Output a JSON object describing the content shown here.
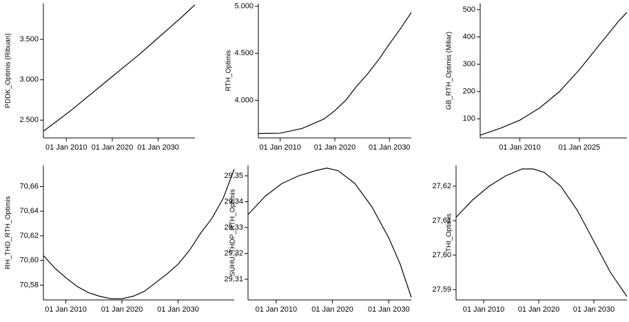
{
  "chart_data": [
    {
      "type": "line",
      "y_label": "PDDK_Optimis (Ribuan)",
      "color": "#000000",
      "x": [
        2005,
        2008,
        2011,
        2014,
        2017,
        2020,
        2023,
        2026,
        2029,
        2032,
        2035,
        2038
      ],
      "values": [
        2363,
        2490,
        2620,
        2760,
        2900,
        3040,
        3180,
        3320,
        3470,
        3620,
        3770,
        3930
      ],
      "xlim": [
        2005,
        2038
      ],
      "xticks": [
        {
          "value": 2010,
          "label": "01 Jan 2010"
        },
        {
          "value": 2020,
          "label": "01 Jan 2020"
        },
        {
          "value": 2030,
          "label": "01 Jan 2030"
        }
      ],
      "ylim": [
        2280,
        3945
      ],
      "yticks": [
        {
          "value": 2500,
          "label": "2.500"
        },
        {
          "value": 3000,
          "label": "3.000"
        },
        {
          "value": 3500,
          "label": "3.500"
        }
      ]
    },
    {
      "type": "line",
      "y_label": "RTH_Optimis",
      "color": "#000000",
      "x": [
        2006,
        2010,
        2014,
        2018,
        2020,
        2022,
        2024,
        2026,
        2028,
        2030,
        2032,
        2034
      ],
      "values": [
        3647,
        3650,
        3700,
        3800,
        3890,
        4000,
        4150,
        4280,
        4430,
        4600,
        4760,
        4934
      ],
      "xlim": [
        2006,
        2034
      ],
      "xticks": [
        {
          "value": 2010,
          "label": "01 Jan 2010"
        },
        {
          "value": 2020,
          "label": "01 Jan 2020"
        },
        {
          "value": 2030,
          "label": "01 Jan 2030"
        }
      ],
      "ylim": [
        3600,
        5030
      ],
      "yticks": [
        {
          "value": 4000,
          "label": "4.000"
        },
        {
          "value": 4500,
          "label": "4.500"
        },
        {
          "value": 5000,
          "label": "5.000"
        }
      ]
    },
    {
      "type": "line",
      "y_label": "GB_RTH_Optimis (Miliar)",
      "color": "#000000",
      "x": [
        2000,
        2005,
        2010,
        2015,
        2020,
        2025,
        2030,
        2035,
        2037
      ],
      "values": [
        40,
        65,
        95,
        140,
        200,
        280,
        370,
        460,
        490
      ],
      "xlim": [
        2000,
        2037
      ],
      "xticks": [
        {
          "value": 2010,
          "label": "01 Jan 2010"
        },
        {
          "value": 2025,
          "label": "01 Jan 2025"
        }
      ],
      "ylim": [
        30,
        523
      ],
      "yticks": [
        100,
        200,
        300,
        400,
        500
      ]
    },
    {
      "type": "line",
      "y_label": "RH_THD_RTH_Optimis",
      "color": "#000000",
      "x": [
        2006,
        2008,
        2010,
        2012,
        2014,
        2016,
        2018,
        2020,
        2022,
        2024,
        2026,
        2028,
        2030,
        2032,
        2034,
        2036,
        2038,
        2040
      ],
      "values": [
        70.604,
        70.594,
        70.586,
        70.579,
        70.574,
        70.571,
        70.569,
        70.569,
        70.571,
        70.575,
        70.582,
        70.589,
        70.597,
        70.608,
        70.622,
        70.634,
        70.65,
        70.674
      ],
      "xlim": [
        2006,
        2040
      ],
      "xticks": [
        {
          "value": 2010,
          "label": "01 Jan 2010"
        },
        {
          "value": 2020,
          "label": "01 Jan 2020"
        },
        {
          "value": 2030,
          "label": "01 Jan 2030"
        }
      ],
      "ylim": [
        70.568,
        70.677
      ],
      "yticks": [
        {
          "value": 70.58,
          "label": "70,58"
        },
        {
          "value": 70.6,
          "label": "70,60"
        },
        {
          "value": 70.62,
          "label": "70,62"
        },
        {
          "value": 70.64,
          "label": "70,64"
        },
        {
          "value": 70.66,
          "label": "70,66"
        }
      ]
    },
    {
      "type": "line",
      "y_label": "SUHU_THDP_RTH_Optimis",
      "color": "#000000",
      "x": [
        2005,
        2008,
        2011,
        2014,
        2017,
        2019,
        2021,
        2024,
        2027,
        2030,
        2032,
        2034
      ],
      "values": [
        29.335,
        29.342,
        29.347,
        29.35,
        29.352,
        29.353,
        29.352,
        29.347,
        29.338,
        29.326,
        29.316,
        29.303
      ],
      "xlim": [
        2005,
        2034
      ],
      "xticks": [
        {
          "value": 2010,
          "label": "01 Jan 2010"
        },
        {
          "value": 2020,
          "label": "01 Jan 2020"
        },
        {
          "value": 2030,
          "label": "01 Jan 2030"
        }
      ],
      "ylim": [
        29.302,
        29.354
      ],
      "yticks": [
        {
          "value": 29.31,
          "label": "29,31"
        },
        {
          "value": 29.32,
          "label": "29,32"
        },
        {
          "value": 29.33,
          "label": "29,33"
        },
        {
          "value": 29.34,
          "label": "29,34"
        },
        {
          "value": 29.35,
          "label": "29,35"
        }
      ]
    },
    {
      "type": "line",
      "y_label": "THI_Optimis",
      "color": "#000000",
      "x": [
        2005,
        2008,
        2011,
        2014,
        2017,
        2019,
        2021,
        2024,
        2027,
        2030,
        2033,
        2036
      ],
      "values": [
        27.611,
        27.616,
        27.62,
        27.623,
        27.625,
        27.625,
        27.624,
        27.62,
        27.613,
        27.604,
        27.595,
        27.588
      ],
      "xlim": [
        2005,
        2036
      ],
      "xticks": [
        {
          "value": 2010,
          "label": "01 Jan 2010"
        },
        {
          "value": 2020,
          "label": "01 Jan 2020"
        },
        {
          "value": 2030,
          "label": "01 Jan 2030"
        }
      ],
      "ylim": [
        27.587,
        27.626
      ],
      "yticks": [
        {
          "value": 27.59,
          "label": "27,59"
        },
        {
          "value": 27.6,
          "label": "27,60"
        },
        {
          "value": 27.61,
          "label": "27,61"
        },
        {
          "value": 27.62,
          "label": "27,62"
        }
      ]
    }
  ]
}
